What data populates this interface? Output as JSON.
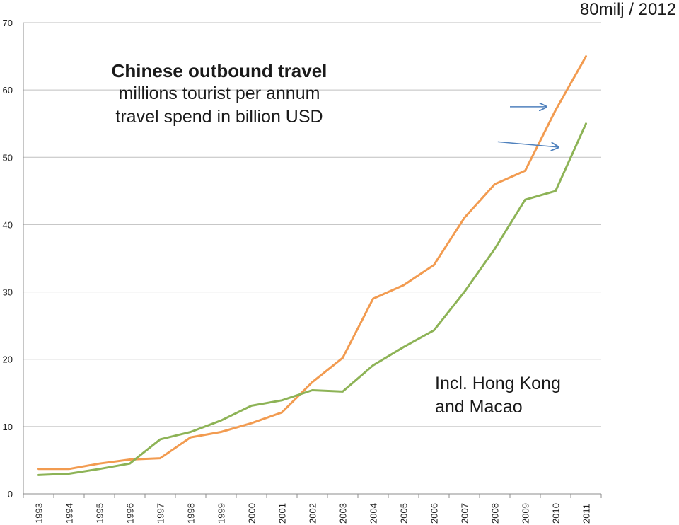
{
  "chart_data": {
    "type": "line",
    "title": "Chinese outbound travel",
    "subtitle": [
      "millions  tourist per annum",
      "travel spend in billion USD"
    ],
    "corner_note": "80milj / 2012",
    "annotation": [
      "Incl. Hong Kong",
      "and Macao"
    ],
    "x": [
      "1993",
      "1994",
      "1995",
      "1996",
      "1997",
      "1998",
      "1999",
      "2000",
      "2001",
      "2002",
      "2003",
      "2004",
      "2005",
      "2006",
      "2007",
      "2008",
      "2009",
      "2010",
      "2011"
    ],
    "ylim": [
      0,
      70
    ],
    "yticks": [
      0,
      10,
      20,
      30,
      40,
      50,
      60,
      70
    ],
    "grid": true,
    "legend": "none",
    "series": [
      {
        "color": "#f29b50",
        "values": [
          3.7,
          3.7,
          4.5,
          5.1,
          5.3,
          8.4,
          9.2,
          10.5,
          12.1,
          16.6,
          20.2,
          29.0,
          31.0,
          34.0,
          41.0,
          46.0,
          48.0,
          57.0,
          65.0
        ]
      },
      {
        "color": "#8db356",
        "values": [
          2.8,
          3.0,
          3.7,
          4.5,
          8.1,
          9.2,
          10.9,
          13.1,
          13.9,
          15.4,
          15.2,
          19.1,
          21.8,
          24.3,
          30.0,
          36.4,
          43.7,
          45.0,
          55.0
        ]
      }
    ],
    "arrows": [
      {
        "from": [
          2008.5,
          57.5
        ],
        "to": [
          2009.7,
          57.5
        ],
        "color": "#4f81bd"
      },
      {
        "from": [
          2008.1,
          52.3
        ],
        "to": [
          2010.1,
          51.5
        ],
        "color": "#4f81bd"
      }
    ],
    "colors": {
      "grid": "#bfbfbf",
      "axis": "#8c8c8c",
      "text": "#1a1a1a"
    }
  }
}
